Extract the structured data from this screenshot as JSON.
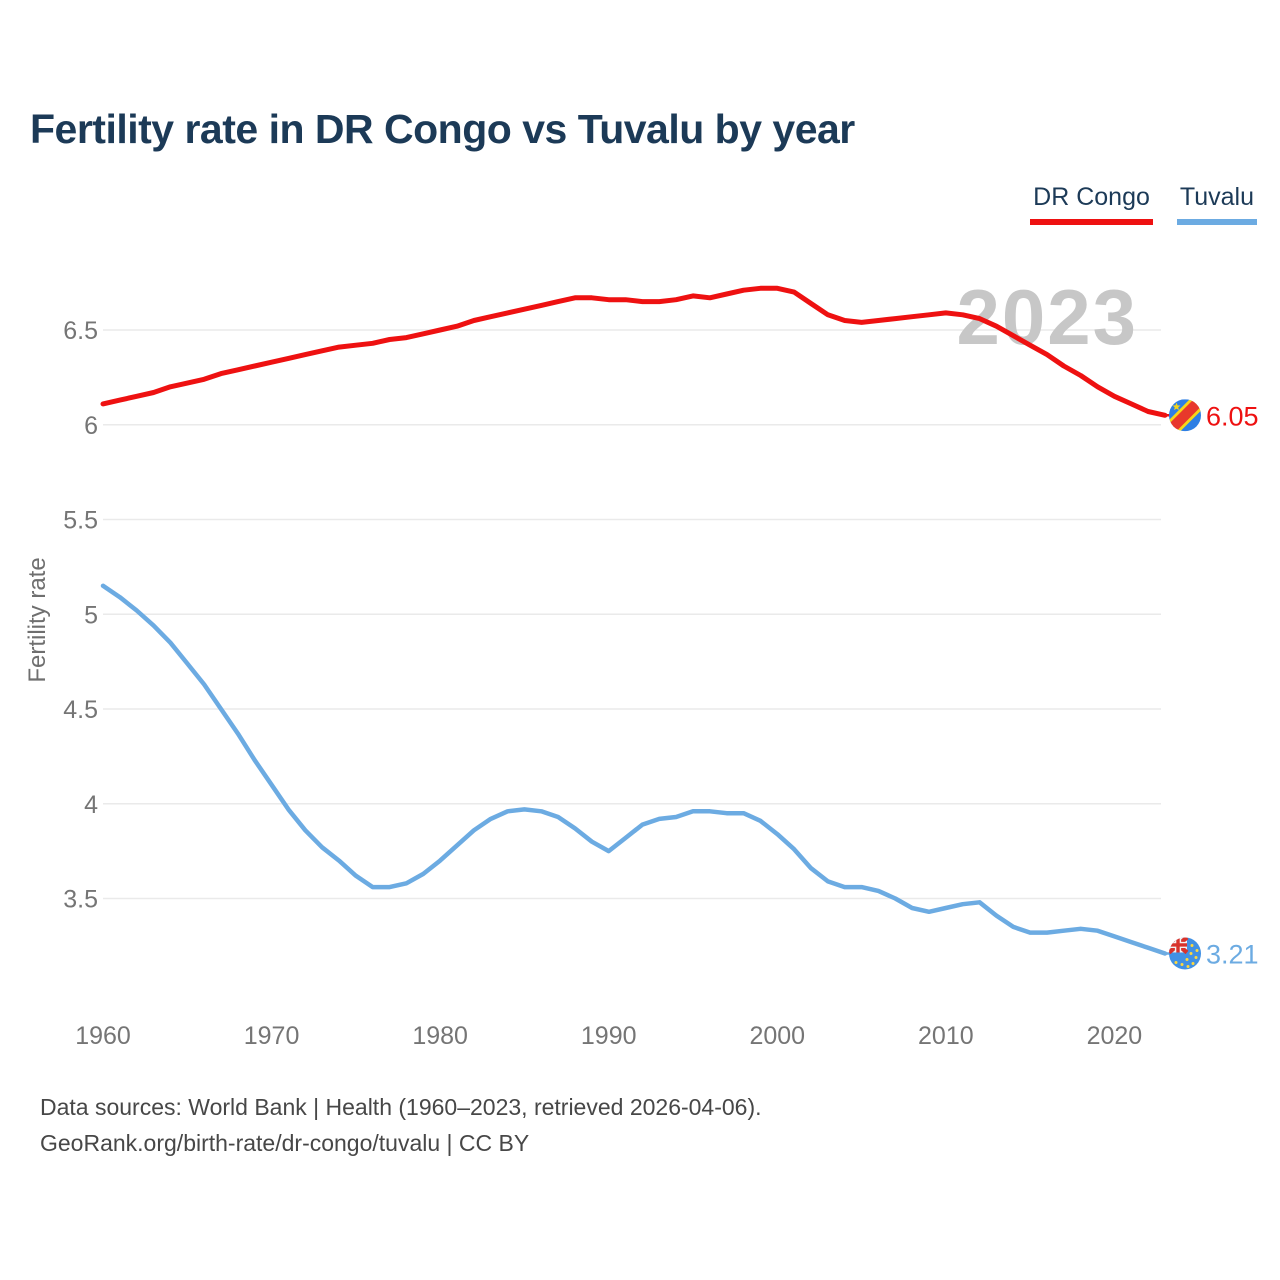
{
  "title": "Fertility rate in DR Congo vs Tuvalu by year",
  "legend": {
    "items": [
      {
        "label": "DR Congo",
        "color": "#ee1111"
      },
      {
        "label": "Tuvalu",
        "color": "#6cabe2"
      }
    ]
  },
  "watermark": "2023",
  "end_labels": {
    "dr_congo": "6.05",
    "tuvalu": "3.21"
  },
  "footer": {
    "line1": "Data sources: World Bank | Health (1960–2023, retrieved 2026-04-06).",
    "line2": "GeoRank.org/birth-rate/dr-congo/tuvalu | CC BY"
  },
  "chart_data": {
    "type": "line",
    "title": "Fertility rate in DR Congo vs Tuvalu by year",
    "ylabel": "Fertility rate",
    "xlabel": "",
    "grid": "horizontal",
    "legend_position": "top-right",
    "ylim": [
      3.05,
      6.85
    ],
    "xlim": [
      1960,
      2023
    ],
    "yticks": [
      3.5,
      4,
      4.5,
      5,
      5.5,
      6,
      6.5
    ],
    "xticks": [
      1960,
      1970,
      1980,
      1990,
      2000,
      2010,
      2020
    ],
    "x": [
      1960,
      1961,
      1962,
      1963,
      1964,
      1965,
      1966,
      1967,
      1968,
      1969,
      1970,
      1971,
      1972,
      1973,
      1974,
      1975,
      1976,
      1977,
      1978,
      1979,
      1980,
      1981,
      1982,
      1983,
      1984,
      1985,
      1986,
      1987,
      1988,
      1989,
      1990,
      1991,
      1992,
      1993,
      1994,
      1995,
      1996,
      1997,
      1998,
      1999,
      2000,
      2001,
      2002,
      2003,
      2004,
      2005,
      2006,
      2007,
      2008,
      2009,
      2010,
      2011,
      2012,
      2013,
      2014,
      2015,
      2016,
      2017,
      2018,
      2019,
      2020,
      2021,
      2022,
      2023
    ],
    "series": [
      {
        "name": "DR Congo",
        "color": "#ee1111",
        "width": 5,
        "end_value": 6.05,
        "values": [
          6.11,
          6.13,
          6.15,
          6.17,
          6.2,
          6.22,
          6.24,
          6.27,
          6.29,
          6.31,
          6.33,
          6.35,
          6.37,
          6.39,
          6.41,
          6.42,
          6.43,
          6.45,
          6.46,
          6.48,
          6.5,
          6.52,
          6.55,
          6.57,
          6.59,
          6.61,
          6.63,
          6.65,
          6.67,
          6.67,
          6.66,
          6.66,
          6.65,
          6.65,
          6.66,
          6.68,
          6.67,
          6.69,
          6.71,
          6.72,
          6.72,
          6.7,
          6.64,
          6.58,
          6.55,
          6.54,
          6.55,
          6.56,
          6.57,
          6.58,
          6.59,
          6.58,
          6.56,
          6.52,
          6.47,
          6.42,
          6.37,
          6.31,
          6.26,
          6.2,
          6.15,
          6.11,
          6.07,
          6.05
        ]
      },
      {
        "name": "Tuvalu",
        "color": "#6cabe2",
        "width": 4.5,
        "end_value": 3.21,
        "values": [
          5.15,
          5.09,
          5.02,
          4.94,
          4.85,
          4.74,
          4.63,
          4.5,
          4.37,
          4.23,
          4.1,
          3.97,
          3.86,
          3.77,
          3.7,
          3.62,
          3.56,
          3.56,
          3.58,
          3.63,
          3.7,
          3.78,
          3.86,
          3.92,
          3.96,
          3.97,
          3.96,
          3.93,
          3.87,
          3.8,
          3.75,
          3.82,
          3.89,
          3.92,
          3.93,
          3.96,
          3.96,
          3.95,
          3.95,
          3.91,
          3.84,
          3.76,
          3.66,
          3.59,
          3.56,
          3.56,
          3.54,
          3.5,
          3.45,
          3.43,
          3.45,
          3.47,
          3.48,
          3.41,
          3.35,
          3.32,
          3.32,
          3.33,
          3.34,
          3.33,
          3.3,
          3.27,
          3.24,
          3.21
        ]
      }
    ]
  }
}
